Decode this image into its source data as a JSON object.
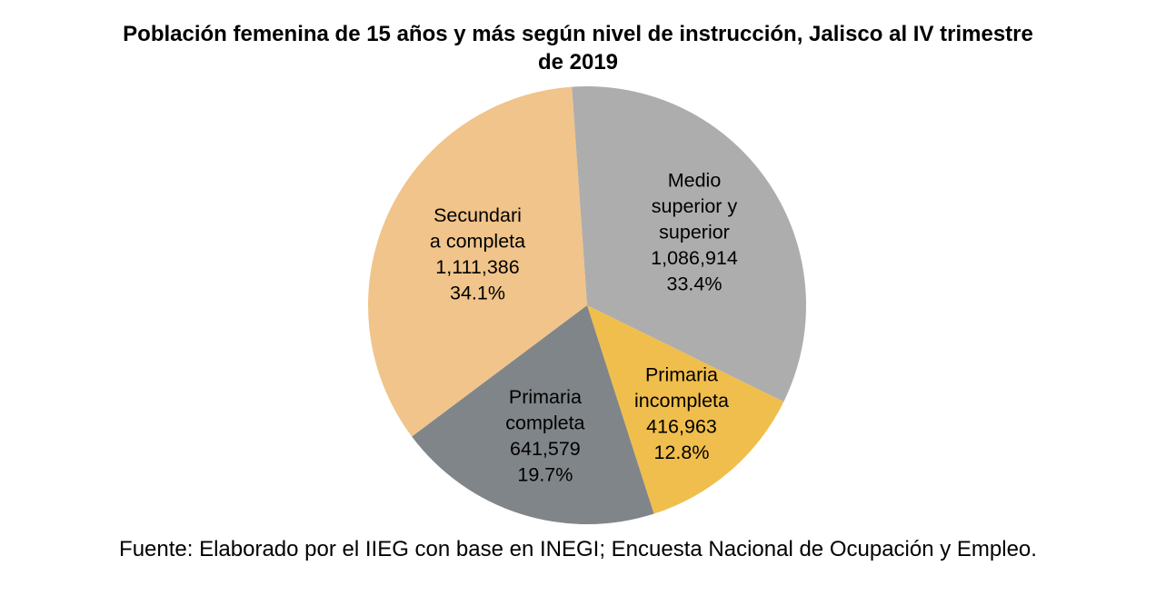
{
  "chart_data": {
    "type": "pie",
    "title_lines": [
      "Población femenina de 15 años y más según nivel de instrucción, Jalisco al IV trimestre",
      "de 2019"
    ],
    "slices": [
      {
        "key": "medio-superior",
        "label_lines": [
          "Medio",
          "superior y",
          "superior"
        ],
        "value": 1086914,
        "value_text": "1,086,914",
        "percent_text": "33.4%",
        "color": "#ADADAD"
      },
      {
        "key": "primaria-incompleta",
        "label_lines": [
          "Primaria",
          "incompleta"
        ],
        "value": 416963,
        "value_text": "416,963",
        "percent_text": "12.8%",
        "color": "#F0BE4C"
      },
      {
        "key": "primaria-completa",
        "label_lines": [
          "Primaria",
          "completa"
        ],
        "value": 641579,
        "value_text": "641,579",
        "percent_text": "19.7%",
        "color": "#808589"
      },
      {
        "key": "secundaria-completa",
        "label_lines": [
          "Secundari",
          "a completa"
        ],
        "value": 1111386,
        "value_text": "1,111,386",
        "percent_text": "34.1%",
        "color": "#F0C48A"
      }
    ]
  },
  "footer": {
    "source": "Fuente: Elaborado por el IIEG con base en INEGI; Encuesta Nacional de Ocupación y Empleo."
  }
}
